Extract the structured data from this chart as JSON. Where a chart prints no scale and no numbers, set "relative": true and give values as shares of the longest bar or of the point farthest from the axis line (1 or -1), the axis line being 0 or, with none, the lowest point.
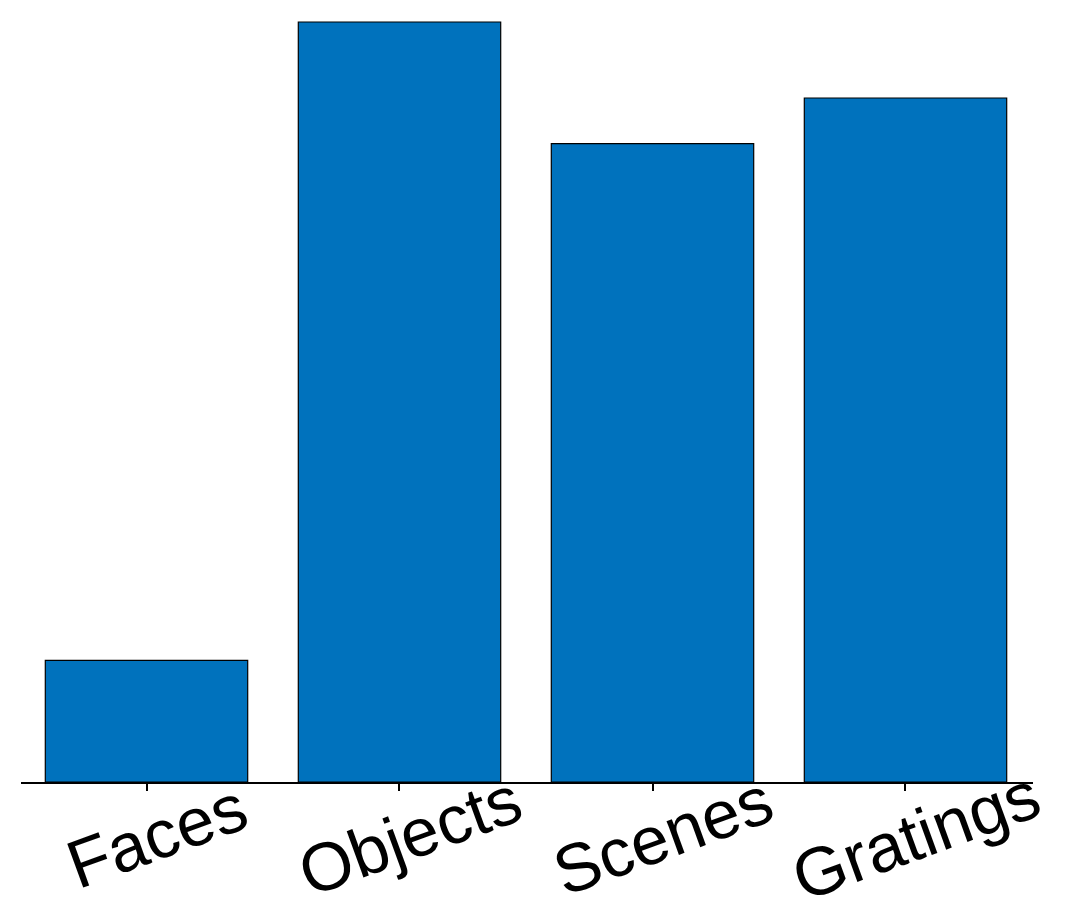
{
  "chart_data": {
    "type": "bar",
    "relative": true,
    "categories": [
      "Faces",
      "Objects",
      "Scenes",
      "Gratings"
    ],
    "values": [
      0.16,
      1,
      0.84,
      0.9
    ],
    "color": "#0072bd"
  }
}
